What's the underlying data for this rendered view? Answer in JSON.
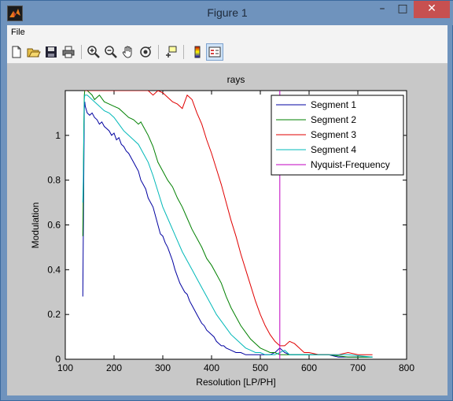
{
  "window": {
    "title": "Figure 1",
    "minimize_glyph": "–",
    "maximize_glyph": "□",
    "close_glyph": "✕"
  },
  "menu": {
    "items": [
      "File"
    ]
  },
  "toolbar": {
    "buttons": [
      "new-figure-icon",
      "open-file-icon",
      "save-icon",
      "print-icon",
      "zoom-in-icon",
      "zoom-out-icon",
      "pan-hand-icon",
      "rotate-3d-icon",
      "data-cursor-icon",
      "colorbar-icon",
      "legend-icon"
    ]
  },
  "colors": {
    "series1": "#0000a0",
    "series2": "#008000",
    "series3": "#e00000",
    "series4": "#00b8b8",
    "nyquist": "#c000c0"
  },
  "chart_data": {
    "type": "line",
    "title": "rays",
    "xlabel": "Resolution [LP/PH]",
    "ylabel": "Modulation",
    "xlim": [
      100,
      800
    ],
    "ylim": [
      0,
      1.2
    ],
    "xticks": [
      100,
      200,
      300,
      400,
      500,
      600,
      700,
      800
    ],
    "yticks": [
      0,
      0.2,
      0.4,
      0.6,
      0.8,
      1
    ],
    "ytick_labels": [
      "0",
      "0.2",
      "0.4",
      "0.6",
      "0.8",
      "1"
    ],
    "grid": false,
    "legend_position": "top-right",
    "series": [
      {
        "name": "Segment 1",
        "color": "#0000a0",
        "x": [
          136,
          137,
          138,
          139,
          140,
          141,
          145,
          150,
          155,
          160,
          165,
          170,
          175,
          180,
          185,
          190,
          195,
          200,
          205,
          210,
          215,
          220,
          225,
          230,
          235,
          240,
          245,
          250,
          255,
          260,
          265,
          270,
          275,
          280,
          285,
          290,
          295,
          300,
          305,
          310,
          315,
          320,
          325,
          330,
          335,
          340,
          345,
          350,
          355,
          360,
          365,
          370,
          375,
          380,
          385,
          390,
          395,
          400,
          405,
          410,
          415,
          420,
          425,
          430,
          440,
          450,
          460,
          470,
          480,
          490,
          500,
          510,
          520,
          530,
          540,
          550,
          560,
          570,
          580,
          590,
          600,
          620,
          640,
          660,
          680,
          700,
          730
        ],
        "y": [
          0.28,
          0.55,
          0.85,
          1.12,
          1.15,
          1.13,
          1.1,
          1.09,
          1.1,
          1.08,
          1.07,
          1.05,
          1.06,
          1.04,
          1.03,
          1.02,
          1.0,
          1.01,
          0.98,
          0.99,
          0.96,
          0.95,
          0.93,
          0.92,
          0.9,
          0.88,
          0.86,
          0.84,
          0.8,
          0.78,
          0.76,
          0.72,
          0.7,
          0.68,
          0.64,
          0.6,
          0.56,
          0.55,
          0.52,
          0.5,
          0.47,
          0.44,
          0.4,
          0.37,
          0.34,
          0.32,
          0.3,
          0.29,
          0.26,
          0.24,
          0.22,
          0.2,
          0.18,
          0.16,
          0.15,
          0.13,
          0.12,
          0.11,
          0.1,
          0.08,
          0.07,
          0.06,
          0.06,
          0.05,
          0.04,
          0.03,
          0.03,
          0.02,
          0.02,
          0.02,
          0.02,
          0.02,
          0.02,
          0.03,
          0.05,
          0.03,
          0.02,
          0.02,
          0.02,
          0.02,
          0.02,
          0.02,
          0.02,
          0.01,
          0.01,
          0.01,
          0.01
        ]
      },
      {
        "name": "Segment 2",
        "color": "#008000",
        "x": [
          136,
          137,
          138,
          139,
          140,
          145,
          150,
          155,
          160,
          170,
          180,
          190,
          200,
          210,
          220,
          230,
          240,
          250,
          255,
          260,
          270,
          280,
          290,
          300,
          310,
          320,
          330,
          340,
          350,
          360,
          370,
          380,
          390,
          400,
          410,
          420,
          430,
          440,
          450,
          460,
          470,
          480,
          490,
          500,
          510,
          520,
          530,
          540,
          550,
          560,
          580,
          600,
          640,
          680,
          730
        ],
        "y": [
          0.55,
          0.75,
          1.05,
          1.18,
          1.2,
          1.2,
          1.19,
          1.18,
          1.16,
          1.18,
          1.15,
          1.14,
          1.13,
          1.12,
          1.1,
          1.08,
          1.07,
          1.05,
          1.06,
          1.04,
          1.0,
          0.95,
          0.88,
          0.84,
          0.8,
          0.77,
          0.72,
          0.68,
          0.63,
          0.58,
          0.54,
          0.5,
          0.45,
          0.42,
          0.38,
          0.34,
          0.28,
          0.23,
          0.19,
          0.15,
          0.12,
          0.09,
          0.07,
          0.05,
          0.04,
          0.03,
          0.03,
          0.02,
          0.02,
          0.02,
          0.02,
          0.02,
          0.02,
          0.01,
          0.01
        ]
      },
      {
        "name": "Segment 3",
        "color": "#e00000",
        "x": [
          140,
          150,
          160,
          170,
          180,
          190,
          200,
          210,
          220,
          230,
          240,
          250,
          260,
          270,
          280,
          290,
          300,
          310,
          320,
          330,
          340,
          350,
          360,
          370,
          380,
          390,
          400,
          410,
          420,
          430,
          440,
          450,
          460,
          470,
          480,
          490,
          500,
          510,
          520,
          530,
          540,
          550,
          560,
          570,
          580,
          590,
          600,
          620,
          640,
          660,
          680,
          700,
          730
        ],
        "y": [
          1.2,
          1.2,
          1.2,
          1.2,
          1.2,
          1.2,
          1.2,
          1.2,
          1.2,
          1.2,
          1.2,
          1.2,
          1.2,
          1.2,
          1.18,
          1.2,
          1.19,
          1.17,
          1.15,
          1.14,
          1.12,
          1.18,
          1.16,
          1.1,
          1.05,
          0.98,
          0.92,
          0.85,
          0.78,
          0.7,
          0.62,
          0.55,
          0.47,
          0.4,
          0.33,
          0.26,
          0.2,
          0.15,
          0.11,
          0.08,
          0.06,
          0.06,
          0.08,
          0.07,
          0.05,
          0.03,
          0.03,
          0.02,
          0.02,
          0.02,
          0.03,
          0.02,
          0.02
        ]
      },
      {
        "name": "Segment 4",
        "color": "#00b8b8",
        "x": [
          136,
          137,
          138,
          139,
          140,
          145,
          150,
          155,
          160,
          170,
          180,
          190,
          200,
          210,
          220,
          230,
          240,
          250,
          260,
          270,
          280,
          290,
          300,
          310,
          320,
          330,
          340,
          350,
          360,
          370,
          380,
          390,
          400,
          410,
          420,
          430,
          440,
          450,
          460,
          470,
          480,
          490,
          500,
          510,
          520,
          530,
          540,
          550,
          560,
          580,
          600,
          640,
          680,
          730
        ],
        "y": [
          0.7,
          0.8,
          1.0,
          1.16,
          1.18,
          1.18,
          1.17,
          1.16,
          1.15,
          1.13,
          1.11,
          1.1,
          1.08,
          1.05,
          1.02,
          1.0,
          0.98,
          0.96,
          0.92,
          0.88,
          0.82,
          0.75,
          0.68,
          0.63,
          0.58,
          0.53,
          0.48,
          0.44,
          0.4,
          0.36,
          0.32,
          0.28,
          0.24,
          0.2,
          0.17,
          0.14,
          0.11,
          0.09,
          0.07,
          0.05,
          0.04,
          0.03,
          0.03,
          0.02,
          0.02,
          0.02,
          0.03,
          0.04,
          0.02,
          0.02,
          0.02,
          0.02,
          0.02,
          0.01
        ]
      },
      {
        "name": "Nyquist-Frequency",
        "color": "#c000c0",
        "x": [
          540,
          540
        ],
        "y": [
          0,
          1.2
        ]
      }
    ]
  }
}
